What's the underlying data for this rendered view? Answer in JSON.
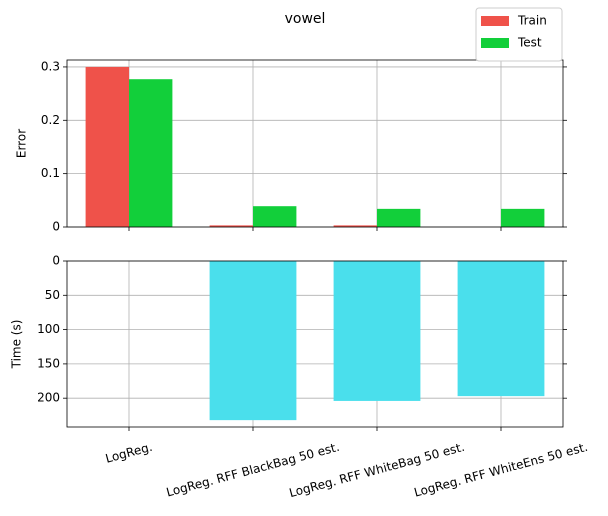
{
  "chart_data": [
    {
      "type": "bar",
      "title": "vowel",
      "ylabel": "Error",
      "series": [
        {
          "name": "Train",
          "color": "#ef524a",
          "values": [
            0.3,
            0.003,
            0.003,
            0
          ]
        },
        {
          "name": "Test",
          "color": "#12cf3a",
          "values": [
            0.277,
            0.039,
            0.034,
            0.034
          ]
        }
      ],
      "ylim": [
        0,
        0.313
      ],
      "yticks": [
        0.0,
        0.1,
        0.2,
        0.3
      ],
      "grid": true,
      "legend": "upper right"
    },
    {
      "type": "bar",
      "ylabel": "Time (s)",
      "categories": [
        "LogReg.",
        "LogReg. RFF BlackBag 50 est.",
        "LogReg. RFF WhiteBag 50 est.",
        "LogReg. RFF WhiteEns 50 est."
      ],
      "values": [
        0,
        232,
        204,
        197
      ],
      "color": "#4adfec",
      "ylim": [
        242,
        0
      ],
      "yticks": [
        0,
        50,
        100,
        150,
        200
      ],
      "grid": true
    }
  ]
}
